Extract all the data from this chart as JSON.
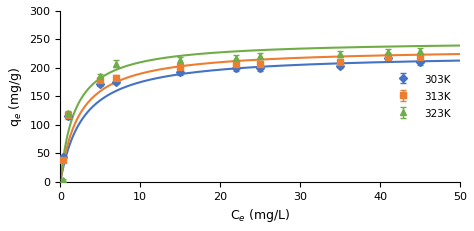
{
  "title": "",
  "xlabel": "C$_e$ (mg/L)",
  "ylabel": "q$_e$ (mg/g)",
  "xlim": [
    0,
    50
  ],
  "ylim": [
    0,
    300
  ],
  "xticks": [
    0,
    10,
    20,
    30,
    40,
    50
  ],
  "yticks": [
    0,
    50,
    100,
    150,
    200,
    250,
    300
  ],
  "series": [
    {
      "label": "303K",
      "color": "#4472C4",
      "marker": "D",
      "markersize": 4,
      "x_data": [
        0.3,
        1.0,
        5.0,
        7.0,
        15.0,
        22.0,
        25.0,
        35.0,
        41.0,
        45.0
      ],
      "y_data": [
        44,
        115,
        172,
        175,
        192,
        199,
        199,
        204,
        217,
        210
      ],
      "y_err": [
        3,
        4,
        4,
        4,
        5,
        4,
        4,
        5,
        5,
        5
      ],
      "qm": 225,
      "KL": 0.35
    },
    {
      "label": "313K",
      "color": "#ED7D31",
      "marker": "s",
      "markersize": 4,
      "x_data": [
        0.3,
        1.0,
        5.0,
        7.0,
        15.0,
        22.0,
        25.0,
        35.0,
        41.0,
        45.0
      ],
      "y_data": [
        38,
        118,
        178,
        182,
        202,
        206,
        206,
        210,
        220,
        220
      ],
      "y_err": [
        3,
        4,
        4,
        5,
        5,
        5,
        5,
        5,
        6,
        5
      ],
      "qm": 235,
      "KL": 0.42
    },
    {
      "label": "323K",
      "color": "#70AD47",
      "marker": "^",
      "markersize": 4,
      "x_data": [
        0.3,
        1.0,
        5.0,
        7.0,
        15.0,
        22.0,
        25.0,
        35.0,
        41.0,
        45.0
      ],
      "y_data": [
        3,
        120,
        185,
        207,
        213,
        218,
        221,
        225,
        228,
        230
      ],
      "y_err": [
        2,
        4,
        5,
        6,
        6,
        5,
        5,
        5,
        6,
        5
      ],
      "qm": 248,
      "KL": 0.55
    }
  ],
  "legend_loc": "center right",
  "background_color": "#FFFFFF",
  "grid": false,
  "tick_fontsize": 8,
  "label_fontsize": 9
}
